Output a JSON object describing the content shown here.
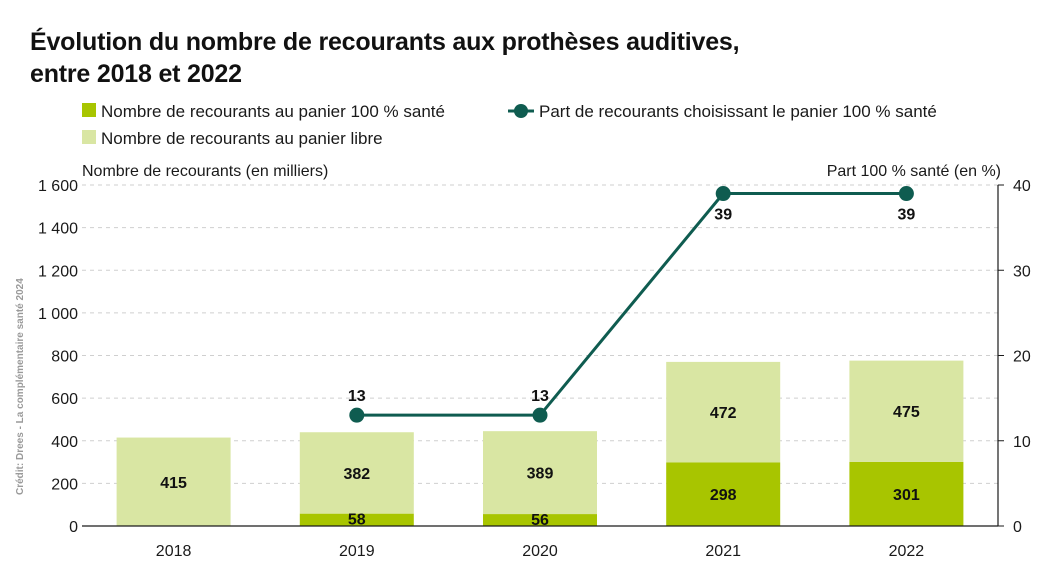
{
  "chart_data": {
    "type": "bar",
    "stacked": true,
    "title_lines": [
      "Évolution du nombre de recourants aux prothèses auditives,",
      "entre 2018 et 2022"
    ],
    "categories": [
      "2018",
      "2019",
      "2020",
      "2021",
      "2022"
    ],
    "series": [
      {
        "name": "Nombre de recourants au panier 100 % santé",
        "values": [
          null,
          58,
          56,
          298,
          301
        ],
        "color": "#a8c500",
        "kind": "bar"
      },
      {
        "name": "Nombre de recourants au panier libre",
        "values": [
          415,
          382,
          389,
          472,
          475
        ],
        "color": "#d9e6a3",
        "kind": "bar"
      },
      {
        "name": "Part de recourants choisissant le panier 100 % santé",
        "values": [
          null,
          13,
          13,
          39,
          39
        ],
        "color": "#0f5c50",
        "kind": "line",
        "axis": "right"
      }
    ],
    "ylabel_left": "Nombre de recourants (en milliers)",
    "ylabel_right": "Part 100 % santé (en %)",
    "ylim_left": [
      0,
      1600
    ],
    "yticks_left": [
      "0",
      "200",
      "400",
      "600",
      "800",
      "1 000",
      "1 200",
      "1 400",
      "1 600"
    ],
    "ylim_right": [
      0,
      40
    ],
    "yticks_right": [
      "0",
      "10",
      "20",
      "30",
      "40"
    ],
    "legend_placement": "top-left",
    "source_credit": "Crédit: Drees - La complémentaire santé 2024"
  }
}
